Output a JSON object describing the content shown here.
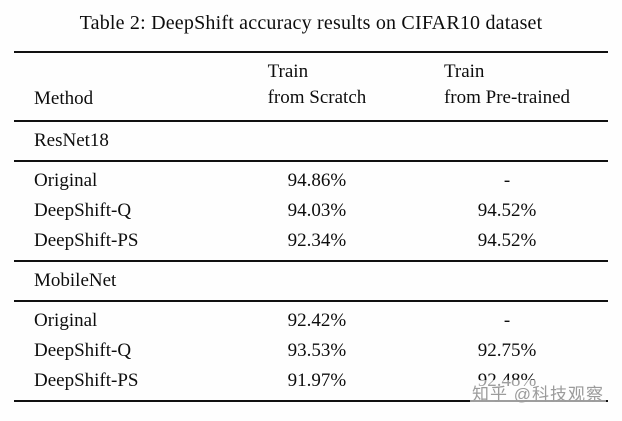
{
  "title": "Table 2: DeepShift accuracy results on CIFAR10 dataset",
  "watermark": "知乎 @科技观察",
  "table": {
    "headers": {
      "method": "Method",
      "scratch_line1": "Train",
      "scratch_line2": "from Scratch",
      "pretrained_line1": "Train",
      "pretrained_line2": "from Pre-trained"
    },
    "sections": [
      {
        "name": "ResNet18",
        "rows": [
          {
            "method": "Original",
            "scratch": "94.86%",
            "pretrained": "-"
          },
          {
            "method": "DeepShift-Q",
            "scratch": "94.03%",
            "pretrained": "94.52%"
          },
          {
            "method": "DeepShift-PS",
            "scratch": "92.34%",
            "pretrained": "94.52%"
          }
        ]
      },
      {
        "name": "MobileNet",
        "rows": [
          {
            "method": "Original",
            "scratch": "92.42%",
            "pretrained": "-"
          },
          {
            "method": "DeepShift-Q",
            "scratch": "93.53%",
            "pretrained": "92.75%"
          },
          {
            "method": "DeepShift-PS",
            "scratch": "91.97%",
            "pretrained": "92.48%"
          }
        ]
      }
    ]
  },
  "chart_data": {
    "type": "table",
    "title": "Table 2: DeepShift accuracy results on CIFAR10 dataset",
    "columns": [
      "Method",
      "Train from Scratch",
      "Train from Pre-trained"
    ],
    "groups": [
      {
        "group": "ResNet18",
        "rows": [
          [
            "Original",
            "94.86%",
            "-"
          ],
          [
            "DeepShift-Q",
            "94.03%",
            "94.52%"
          ],
          [
            "DeepShift-PS",
            "92.34%",
            "94.52%"
          ]
        ]
      },
      {
        "group": "MobileNet",
        "rows": [
          [
            "Original",
            "92.42%",
            "-"
          ],
          [
            "DeepShift-Q",
            "93.53%",
            "92.75%"
          ],
          [
            "DeepShift-PS",
            "91.97%",
            "92.48%"
          ]
        ]
      }
    ]
  }
}
